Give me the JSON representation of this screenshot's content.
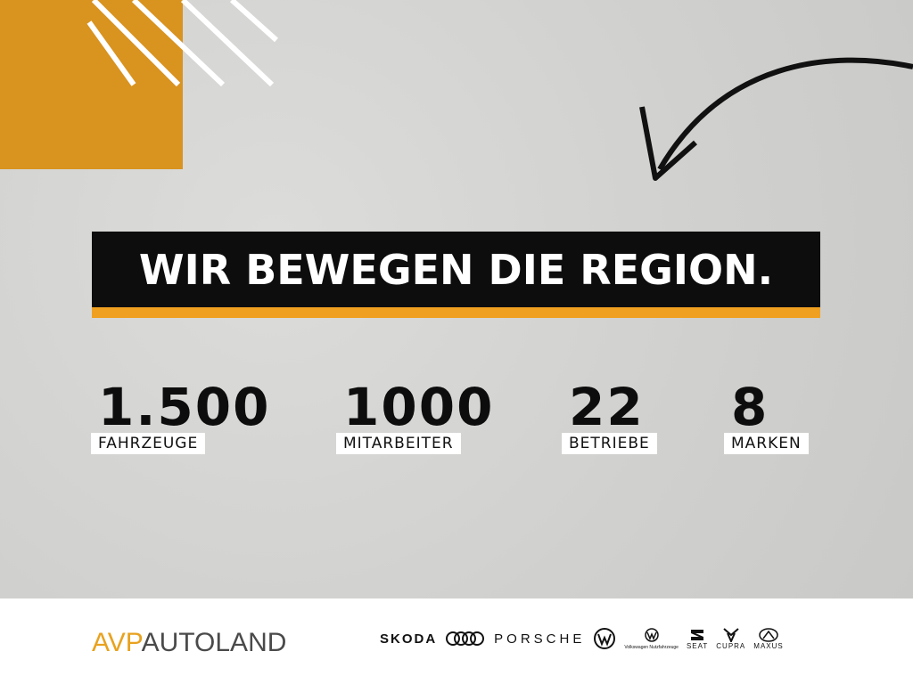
{
  "headline": "WIR BEWEGEN DIE REGION.",
  "stats": [
    {
      "value": "1.500",
      "label": "FAHRZEUGE"
    },
    {
      "value": "1000",
      "label": "MITARBEITER"
    },
    {
      "value": "22",
      "label": "BETRIEBE"
    },
    {
      "value": "8",
      "label": "MARKEN"
    }
  ],
  "logo": {
    "part1": "AVP",
    "part2": "AUTOLAND"
  },
  "brands": [
    "SKODA",
    "Audi",
    "PORSCHE",
    "Volkswagen",
    "Volkswagen Nutzfahrzeuge",
    "SEAT",
    "CUPRA",
    "MAXUS"
  ],
  "colors": {
    "accent": "#f0a020",
    "orange_square": "#d9931f",
    "banner": "#0d0d0d"
  }
}
